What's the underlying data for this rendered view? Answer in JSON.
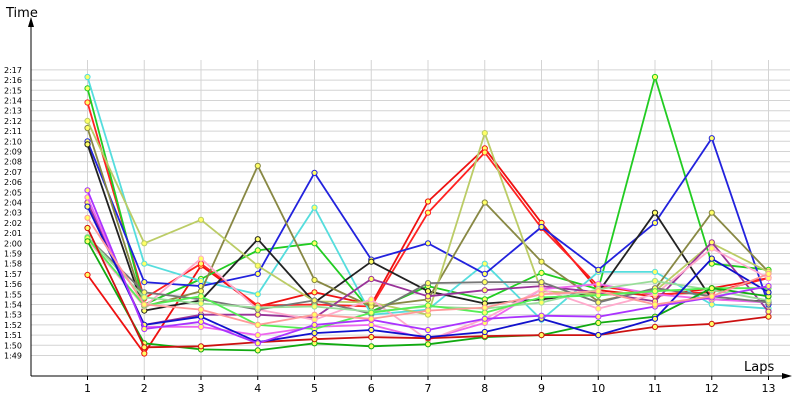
{
  "chart_data": {
    "type": "line",
    "xlabel": "Laps",
    "ylabel": "Time",
    "x": [
      1,
      2,
      3,
      4,
      5,
      6,
      7,
      8,
      9,
      10,
      11,
      12,
      13
    ],
    "x_tick_labels": [
      "1",
      "2",
      "3",
      "4",
      "5",
      "6",
      "7",
      "8",
      "9",
      "10",
      "11",
      "12",
      "13"
    ],
    "ylim": [
      108,
      137.5
    ],
    "y_unit": "seconds",
    "y_tick_values": [
      109,
      110,
      111,
      112,
      113,
      114,
      115,
      116,
      117,
      118,
      119,
      120,
      121,
      122,
      123,
      124,
      125,
      126,
      127,
      128,
      129,
      130,
      131,
      132,
      133,
      134,
      135,
      136,
      137
    ],
    "y_tick_labels": [
      "1:49",
      "1:50",
      "1:51",
      "1:52",
      "1:53",
      "1:54",
      "1:55",
      "1:56",
      "1:57",
      "1:58",
      "1:59",
      "2:00",
      "2:01",
      "2:02",
      "2:03",
      "2:04",
      "2:05",
      "2:06",
      "2:07",
      "2:08",
      "2:09",
      "2:10",
      "2:11",
      "2:12",
      "2:13",
      "2:14",
      "2:15",
      "2:16",
      "2:17"
    ],
    "grid": true,
    "legend": "none",
    "series": [
      {
        "color": "#ee1111",
        "values": [
          116.9,
          109.2,
          117.8,
          113.8,
          115.2,
          114.0,
          124.1,
          129.3,
          122.0,
          115.4,
          114.8,
          115.6,
          116.6
        ]
      },
      {
        "color": "#ff2222",
        "values": [
          133.8,
          114.6,
          118.0,
          113.9,
          114.0,
          113.8,
          123.0,
          128.9,
          121.5,
          115.8,
          115.0,
          115.2,
          116.6
        ]
      },
      {
        "color": "#22cc22",
        "values": [
          135.2,
          114.0,
          116.5,
          119.3,
          120.0,
          113.3,
          115.8,
          114.5,
          117.1,
          115.5,
          136.3,
          118.0,
          117.4
        ]
      },
      {
        "color": "#55dddd",
        "values": [
          136.3,
          118.0,
          116.3,
          115.0,
          123.5,
          113.0,
          113.5,
          118.0,
          112.5,
          117.2,
          117.2,
          114.0,
          113.6
        ]
      },
      {
        "color": "#2222dd",
        "values": [
          130.0,
          116.2,
          115.8,
          117.0,
          126.9,
          118.4,
          120.0,
          117.0,
          121.6,
          117.4,
          122.0,
          130.3,
          114.0
        ]
      },
      {
        "color": "#222222",
        "values": [
          129.7,
          113.4,
          114.4,
          120.4,
          114.2,
          118.2,
          115.3,
          114.1,
          114.5,
          115.2,
          123.0,
          114.5,
          114.3
        ]
      },
      {
        "color": "#888844",
        "values": [
          131.3,
          113.8,
          115.3,
          127.6,
          116.4,
          113.8,
          114.5,
          124.0,
          118.2,
          114.3,
          115.5,
          123.0,
          117.2
        ]
      },
      {
        "color": "#bbcc66",
        "values": [
          132.0,
          120.0,
          122.3,
          117.8,
          114.3,
          114.2,
          113.0,
          130.8,
          115.3,
          115.0,
          115.3,
          120.0,
          117.2
        ]
      },
      {
        "color": "#993399",
        "values": [
          124.0,
          112.0,
          113.0,
          113.0,
          112.7,
          116.5,
          114.8,
          115.4,
          115.8,
          115.2,
          114.3,
          120.1,
          113.3
        ]
      },
      {
        "color": "#ee66ee",
        "values": [
          124.5,
          111.8,
          111.8,
          111.0,
          111.8,
          112.0,
          110.6,
          112.2,
          115.5,
          116.0,
          115.0,
          114.5,
          114.2
        ]
      },
      {
        "color": "#ffaacc",
        "values": [
          120.3,
          113.8,
          118.5,
          113.5,
          112.5,
          114.5,
          110.5,
          112.6,
          115.5,
          113.6,
          115.0,
          119.5,
          116.6
        ]
      },
      {
        "color": "#777777",
        "values": [
          120.6,
          115.2,
          114.5,
          113.5,
          114.4,
          113.1,
          116.1,
          116.2,
          116.2,
          114.2,
          115.6,
          114.8,
          114.2
        ]
      },
      {
        "color": "#99dd99",
        "values": [
          120.6,
          114.7,
          114.1,
          113.7,
          113.8,
          113.3,
          113.8,
          113.6,
          114.2,
          115.5,
          116.3,
          115.4,
          114.4
        ]
      },
      {
        "color": "#55ee55",
        "values": [
          120.5,
          113.9,
          114.8,
          112.0,
          111.6,
          113.2,
          113.9,
          113.2,
          114.7,
          114.9,
          115.3,
          115.6,
          115.6
        ]
      },
      {
        "color": "#11aa11",
        "values": [
          120.2,
          110.2,
          109.6,
          109.5,
          110.2,
          109.9,
          110.1,
          110.8,
          111.0,
          112.2,
          112.8,
          115.6,
          114.8
        ]
      },
      {
        "color": "#cc1111",
        "values": [
          121.5,
          109.8,
          109.9,
          110.3,
          110.6,
          110.8,
          110.7,
          110.9,
          111.0,
          111.0,
          111.8,
          112.1,
          112.8
        ]
      },
      {
        "color": "#1111cc",
        "values": [
          123.6,
          112.0,
          112.8,
          110.3,
          111.2,
          111.5,
          110.8,
          111.3,
          112.6,
          111.0,
          112.6,
          118.5,
          115.2
        ]
      },
      {
        "color": "#aa33ff",
        "values": [
          125.2,
          111.6,
          112.3,
          110.2,
          112.0,
          112.5,
          111.5,
          112.6,
          112.9,
          112.8,
          113.8,
          114.7,
          115.8
        ]
      },
      {
        "color": "#ff9999",
        "values": [
          122.5,
          114.0,
          113.5,
          112.0,
          113.0,
          112.6,
          113.4,
          113.7,
          115.0,
          115.3,
          114.0,
          114.8,
          117.0
        ]
      }
    ]
  }
}
